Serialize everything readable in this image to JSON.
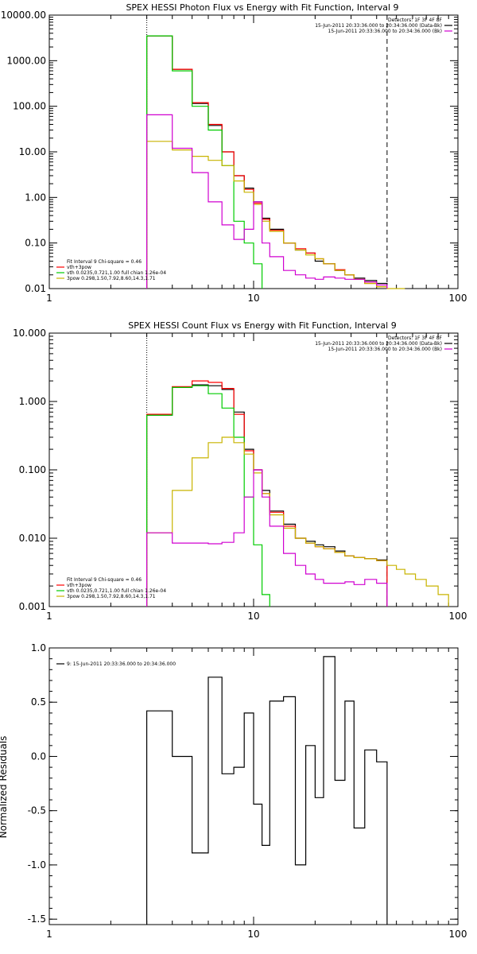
{
  "chart_data": [
    {
      "type": "line",
      "title": "SPEX HESSI Photon Flux vs Energy with Fit Function, Interval 9",
      "xscale": "log",
      "yscale": "log",
      "xlim": [
        1,
        100
      ],
      "ylim": [
        0.01,
        10000
      ],
      "x_tick_labels": [
        "1",
        "10",
        "100"
      ],
      "x_tick_values": [
        1,
        10,
        100
      ],
      "y_tick_labels": [
        "10000.00",
        "1000.00",
        "100.00",
        "10.00",
        "1.00",
        "0.10",
        "0.01"
      ],
      "y_tick_values": [
        10000,
        1000,
        100,
        10,
        1,
        0.1,
        0.01
      ],
      "vlines": [
        {
          "x": 3,
          "style": "dotted"
        },
        {
          "x": 45,
          "style": "dashed"
        }
      ],
      "legend_top_right": [
        {
          "label": "Detectors: 1F 3F 4F 8F",
          "color": ""
        },
        {
          "label": "15-Jun-2011 20:33:36.000 to 20:34:36.000 (Data-Bk)",
          "color": "#000000"
        },
        {
          "label": "15-Jun-2011 20:33:36.000 to 20:34:36.000 (Bk)",
          "color": "#d000d0"
        }
      ],
      "legend_bottom_left": [
        {
          "label": "Fit Interval 9   Chi-square = 0.46",
          "color": ""
        },
        {
          "label": "vth+3pow",
          "color": "#ff0000"
        },
        {
          "label": "vth 0.0235,0.721,1.00  full chian 1.26e-04",
          "color": "#00cc00"
        },
        {
          "label": "3pow 0.298,1.50,7.92,8.60,14.3,1.71",
          "color": "#c8b400"
        }
      ],
      "bin_edges": [
        3,
        4,
        5,
        6,
        7,
        8,
        9,
        10,
        11,
        12,
        14,
        16,
        18,
        20,
        22,
        25,
        28,
        31,
        35,
        40,
        45,
        50,
        55
      ],
      "series": [
        {
          "name": "Data-Bk",
          "color": "#000000",
          "values": [
            3500,
            650,
            115,
            38,
            10,
            3.0,
            1.6,
            0.8,
            0.35,
            0.2,
            0.1,
            0.07,
            0.06,
            0.04,
            0.035,
            0.025,
            0.02,
            0.017,
            0.015,
            0.013
          ]
        },
        {
          "name": "vth+3pow",
          "color": "#ff0000",
          "values": [
            3500,
            650,
            120,
            40,
            10,
            3.0,
            1.5,
            0.75,
            0.33,
            0.19,
            0.1,
            0.075,
            0.06,
            0.045,
            0.035,
            0.026,
            0.02,
            0.016,
            0.013,
            0.011
          ]
        },
        {
          "name": "vth",
          "color": "#00cc00",
          "values": [
            3500,
            600,
            100,
            30,
            5,
            0.3,
            0.1,
            0.035
          ]
        },
        {
          "name": "3pow",
          "color": "#c8b400",
          "values": [
            17,
            11,
            8,
            6.5,
            5,
            2.3,
            1.3,
            0.7,
            0.3,
            0.18,
            0.1,
            0.07,
            0.055,
            0.045,
            0.035,
            0.025,
            0.02,
            0.016,
            0.013,
            0.011,
            0.01,
            0.009
          ]
        },
        {
          "name": "Bk",
          "color": "#d000d0",
          "values": [
            65,
            12,
            3.5,
            0.8,
            0.25,
            0.12,
            0.2,
            0.8,
            0.1,
            0.05,
            0.025,
            0.02,
            0.017,
            0.016,
            0.018,
            0.017,
            0.016,
            0.016,
            0.014,
            0.012
          ]
        }
      ]
    },
    {
      "type": "line",
      "title": "SPEX HESSI Count Flux vs Energy with Fit Function, Interval 9",
      "xscale": "log",
      "yscale": "log",
      "xlim": [
        1,
        100
      ],
      "ylim": [
        0.001,
        10
      ],
      "x_tick_labels": [
        "1",
        "10",
        "100"
      ],
      "x_tick_values": [
        1,
        10,
        100
      ],
      "y_tick_labels": [
        "10.000",
        "1.000",
        "0.100",
        "0.010",
        "0.001"
      ],
      "y_tick_values": [
        10,
        1,
        0.1,
        0.01,
        0.001
      ],
      "vlines": [
        {
          "x": 3,
          "style": "dotted"
        },
        {
          "x": 45,
          "style": "dashed"
        }
      ],
      "legend_top_right": [
        {
          "label": "Detectors: 1F 3F 4F 8F",
          "color": ""
        },
        {
          "label": "15-Jun-2011 20:33:36.000 to 20:34:36.000 (Data-Bk)",
          "color": "#000000"
        },
        {
          "label": "15-Jun-2011 20:33:36.000 to 20:34:36.000 (Bk)",
          "color": "#d000d0"
        }
      ],
      "legend_bottom_left": [
        {
          "label": "Fit Interval 9   Chi-square = 0.46",
          "color": ""
        },
        {
          "label": "vth+3pow",
          "color": "#ff0000"
        },
        {
          "label": "vth 0.0235,0.721,1.00  full chian 1.26e-04",
          "color": "#00cc00"
        },
        {
          "label": "3pow 0.298,1.50,7.92,8.60,14.3,1.71",
          "color": "#c8b400"
        }
      ],
      "bin_edges": [
        3,
        4,
        5,
        6,
        7,
        8,
        9,
        10,
        11,
        12,
        14,
        16,
        18,
        20,
        22,
        25,
        28,
        31,
        35,
        40,
        45,
        50,
        55,
        62,
        70,
        80,
        90
      ],
      "series": [
        {
          "name": "Data-Bk",
          "color": "#000000",
          "values": [
            0.63,
            1.6,
            1.75,
            1.7,
            1.5,
            0.7,
            0.2,
            0.1,
            0.05,
            0.025,
            0.016,
            0.01,
            0.009,
            0.008,
            0.0075,
            0.0065,
            0.0055,
            0.0052,
            0.005,
            0.0048
          ]
        },
        {
          "name": "vth+3pow",
          "color": "#ff0000",
          "values": [
            0.65,
            1.65,
            2.0,
            1.9,
            1.55,
            0.65,
            0.19,
            0.1,
            0.045,
            0.024,
            0.015,
            0.01,
            0.0085,
            0.0075,
            0.007,
            0.0062,
            0.0055,
            0.0052,
            0.005,
            0.0047
          ]
        },
        {
          "name": "vth",
          "color": "#00cc00",
          "values": [
            0.63,
            1.6,
            1.7,
            1.3,
            0.8,
            0.3,
            0.04,
            0.008,
            0.0015
          ]
        },
        {
          "name": "3pow",
          "color": "#c8b400",
          "values": [
            0.012,
            0.05,
            0.15,
            0.25,
            0.3,
            0.25,
            0.17,
            0.09,
            0.045,
            0.022,
            0.014,
            0.01,
            0.0085,
            0.0075,
            0.007,
            0.0062,
            0.0055,
            0.0052,
            0.005,
            0.0047,
            0.004,
            0.0035,
            0.003,
            0.0025,
            0.002,
            0.0015
          ]
        },
        {
          "name": "Bk",
          "color": "#d000d0",
          "values": [
            0.012,
            0.0085,
            0.0085,
            0.0083,
            0.0087,
            0.012,
            0.04,
            0.1,
            0.04,
            0.015,
            0.006,
            0.004,
            0.003,
            0.0025,
            0.0022,
            0.0022,
            0.0023,
            0.0021,
            0.0025,
            0.0022
          ]
        }
      ]
    },
    {
      "type": "line",
      "title": "",
      "ylabel": "Normalized Residuals",
      "xscale": "log",
      "yscale": "linear",
      "xlim": [
        1,
        100
      ],
      "ylim": [
        -1.55,
        1.0
      ],
      "x_tick_labels": [
        "1",
        "10",
        "100"
      ],
      "x_tick_values": [
        1,
        10,
        100
      ],
      "y_tick_labels": [
        "1.0",
        "0.5",
        "0.0",
        "-0.5",
        "-1.0",
        "-1.5"
      ],
      "y_tick_values": [
        1.0,
        0.5,
        0.0,
        -0.5,
        -1.0,
        -1.5
      ],
      "legend_top_left": [
        {
          "label": "9: 15-Jun-2011 20:33:36.000 to 20:34:36.000",
          "color": "#000000"
        }
      ],
      "bin_edges": [
        3,
        4,
        5,
        6,
        7,
        8,
        9,
        10,
        11,
        12,
        14,
        16,
        18,
        20,
        22,
        25,
        28,
        31,
        35,
        40,
        45
      ],
      "series": [
        {
          "name": "9: 15-Jun-2011 20:33:36.000 to 20:34:36.000",
          "color": "#000000",
          "values": [
            0.42,
            0.0,
            -0.89,
            0.73,
            -0.16,
            -0.1,
            0.4,
            -0.44,
            -0.82,
            0.51,
            0.55,
            -1.0,
            0.1,
            -0.38,
            0.92,
            -0.22,
            0.51,
            -0.66,
            0.06,
            -0.05
          ]
        }
      ]
    }
  ]
}
